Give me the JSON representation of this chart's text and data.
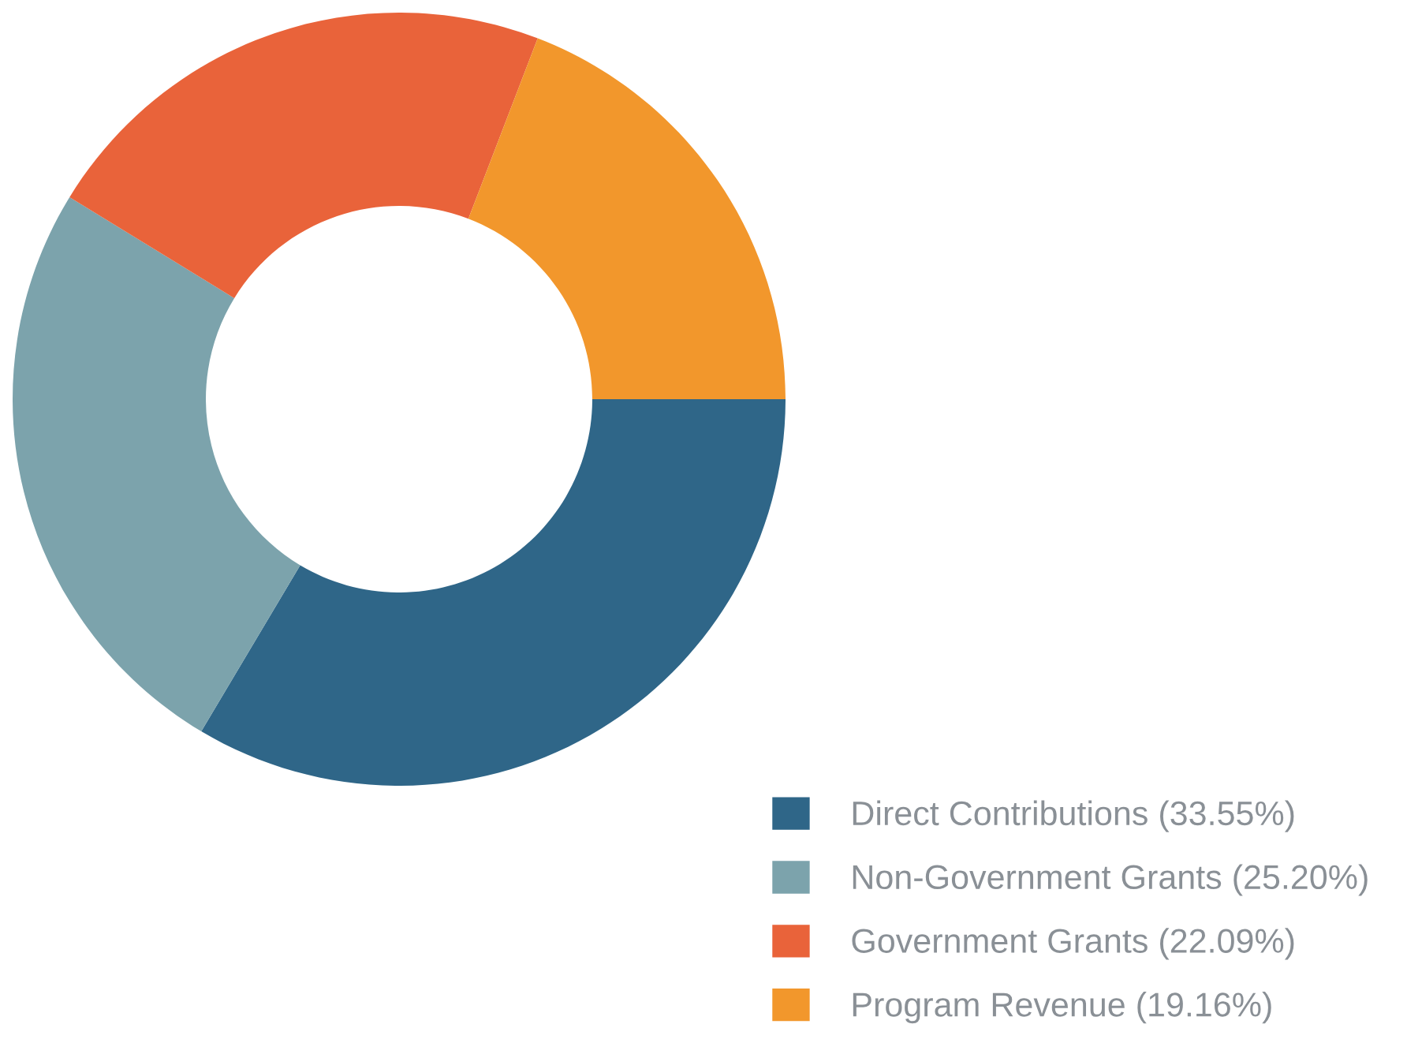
{
  "chart_data": {
    "type": "donut",
    "categories": [
      "Direct Contributions (33.55%)",
      "Non-Government Grants (25.20%)",
      "Government Grants (22.09%)",
      "Program Revenue (19.16%)"
    ],
    "values": [
      33.55,
      25.2,
      22.09,
      19.16
    ],
    "colors": [
      "#2f6688",
      "#7ca3ac",
      "#e9633a",
      "#f2972c"
    ],
    "legend": "bottom right"
  }
}
